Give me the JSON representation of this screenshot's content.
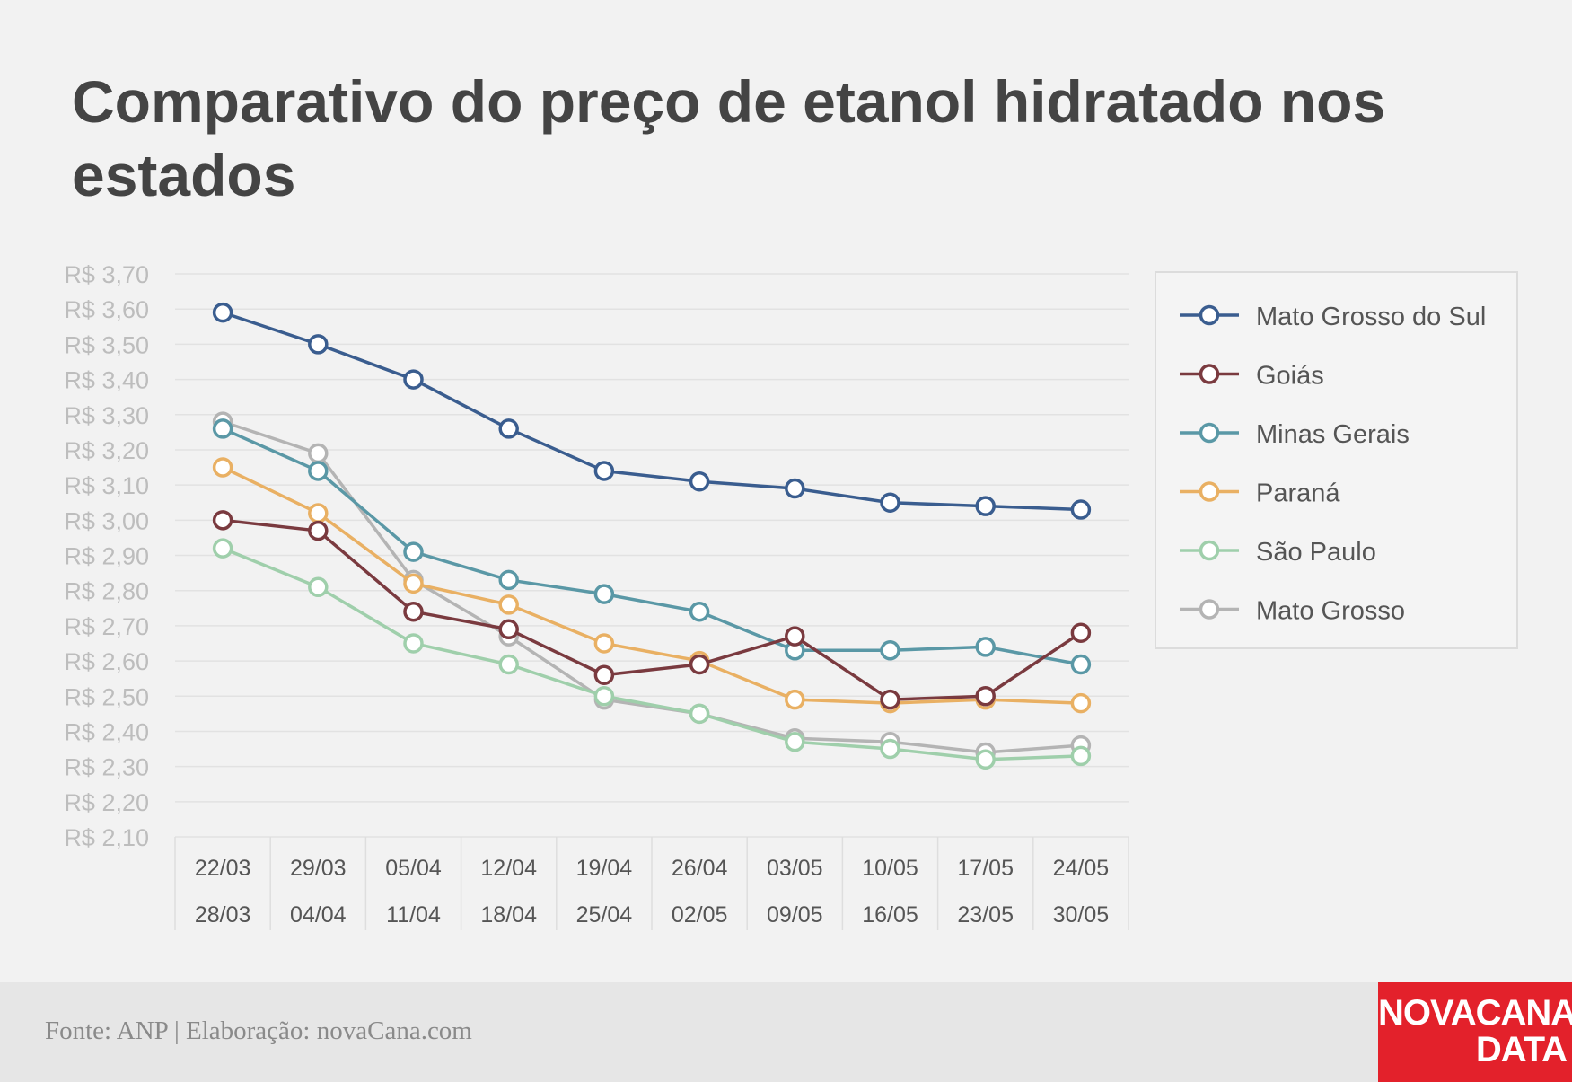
{
  "chart_data": {
    "type": "line",
    "title": "Comparativo do preço de etanol hidratado nos estados",
    "xlabel": "",
    "ylabel": "",
    "ylim": [
      2.1,
      3.7
    ],
    "y_ticks": [
      "R$ 3,70",
      "R$ 3,60",
      "R$ 3,50",
      "R$ 3,40",
      "R$ 3,30",
      "R$ 3,20",
      "R$ 3,10",
      "R$ 3,00",
      "R$ 2,90",
      "R$ 2,80",
      "R$ 2,70",
      "R$ 2,60",
      "R$ 2,50",
      "R$ 2,40",
      "R$ 2,30",
      "R$ 2,20",
      "R$ 2,10"
    ],
    "categories": [
      {
        "start": "22/03",
        "end": "28/03"
      },
      {
        "start": "29/03",
        "end": "04/04"
      },
      {
        "start": "05/04",
        "end": "11/04"
      },
      {
        "start": "12/04",
        "end": "18/04"
      },
      {
        "start": "19/04",
        "end": "25/04"
      },
      {
        "start": "26/04",
        "end": "02/05"
      },
      {
        "start": "03/05",
        "end": "09/05"
      },
      {
        "start": "10/05",
        "end": "16/05"
      },
      {
        "start": "17/05",
        "end": "23/05"
      },
      {
        "start": "24/05",
        "end": "30/05"
      }
    ],
    "grid": true,
    "legend_position": "right",
    "series": [
      {
        "name": "Mato Grosso do Sul",
        "color": "#3a5d8f",
        "values": [
          3.59,
          3.5,
          3.4,
          3.26,
          3.14,
          3.11,
          3.09,
          3.05,
          3.04,
          3.03
        ]
      },
      {
        "name": "Goiás",
        "color": "#7a3a3f",
        "values": [
          3.0,
          2.97,
          2.74,
          2.69,
          2.56,
          2.59,
          2.67,
          2.49,
          2.5,
          2.68
        ]
      },
      {
        "name": "Minas Gerais",
        "color": "#5a98a6",
        "values": [
          3.26,
          3.14,
          2.91,
          2.83,
          2.79,
          2.74,
          2.63,
          2.63,
          2.64,
          2.59
        ]
      },
      {
        "name": "Paraná",
        "color": "#e9b063",
        "values": [
          3.15,
          3.02,
          2.82,
          2.76,
          2.65,
          2.6,
          2.49,
          2.48,
          2.49,
          2.48
        ]
      },
      {
        "name": "São Paulo",
        "color": "#9fcfab",
        "values": [
          2.92,
          2.81,
          2.65,
          2.59,
          2.5,
          2.45,
          2.37,
          2.35,
          2.32,
          2.33
        ]
      },
      {
        "name": "Mato Grosso",
        "color": "#b4b4b4",
        "values": [
          3.28,
          3.19,
          2.83,
          2.67,
          2.49,
          2.45,
          2.38,
          2.37,
          2.34,
          2.36
        ]
      }
    ]
  },
  "footer": {
    "source": "Fonte: ANP | Elaboração: novaCana.com",
    "logo_line1": "NOVACANA",
    "logo_line2": "DATA"
  }
}
